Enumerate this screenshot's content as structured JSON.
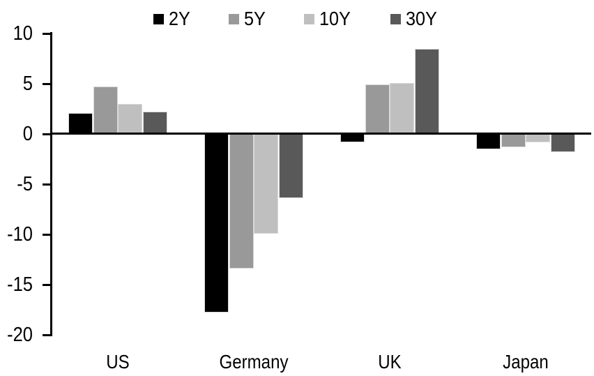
{
  "chart_data": {
    "type": "bar",
    "title": "",
    "categories": [
      "US",
      "Germany",
      "UK",
      "Japan"
    ],
    "series": [
      {
        "name": "2Y",
        "color": "#000000",
        "values": [
          2.1,
          -17.8,
          -0.8,
          -1.5
        ]
      },
      {
        "name": "5Y",
        "color": "#999999",
        "values": [
          4.7,
          -13.4,
          4.9,
          -1.3
        ]
      },
      {
        "name": "10Y",
        "color": "#bfbfbf",
        "values": [
          3.0,
          -9.9,
          5.1,
          -0.8
        ]
      },
      {
        "name": "30Y",
        "color": "#595959",
        "values": [
          2.2,
          -6.4,
          8.5,
          -1.8
        ]
      }
    ],
    "ylim": [
      -20,
      10
    ],
    "yticks": [
      10,
      5,
      0,
      -5,
      -10,
      -15,
      -20
    ],
    "legend_position": "top",
    "legend_labels": [
      "2Y",
      "5Y",
      "10Y",
      "30Y"
    ],
    "grid": false,
    "axis_color": "#000000",
    "background_color": "#ffffff"
  }
}
